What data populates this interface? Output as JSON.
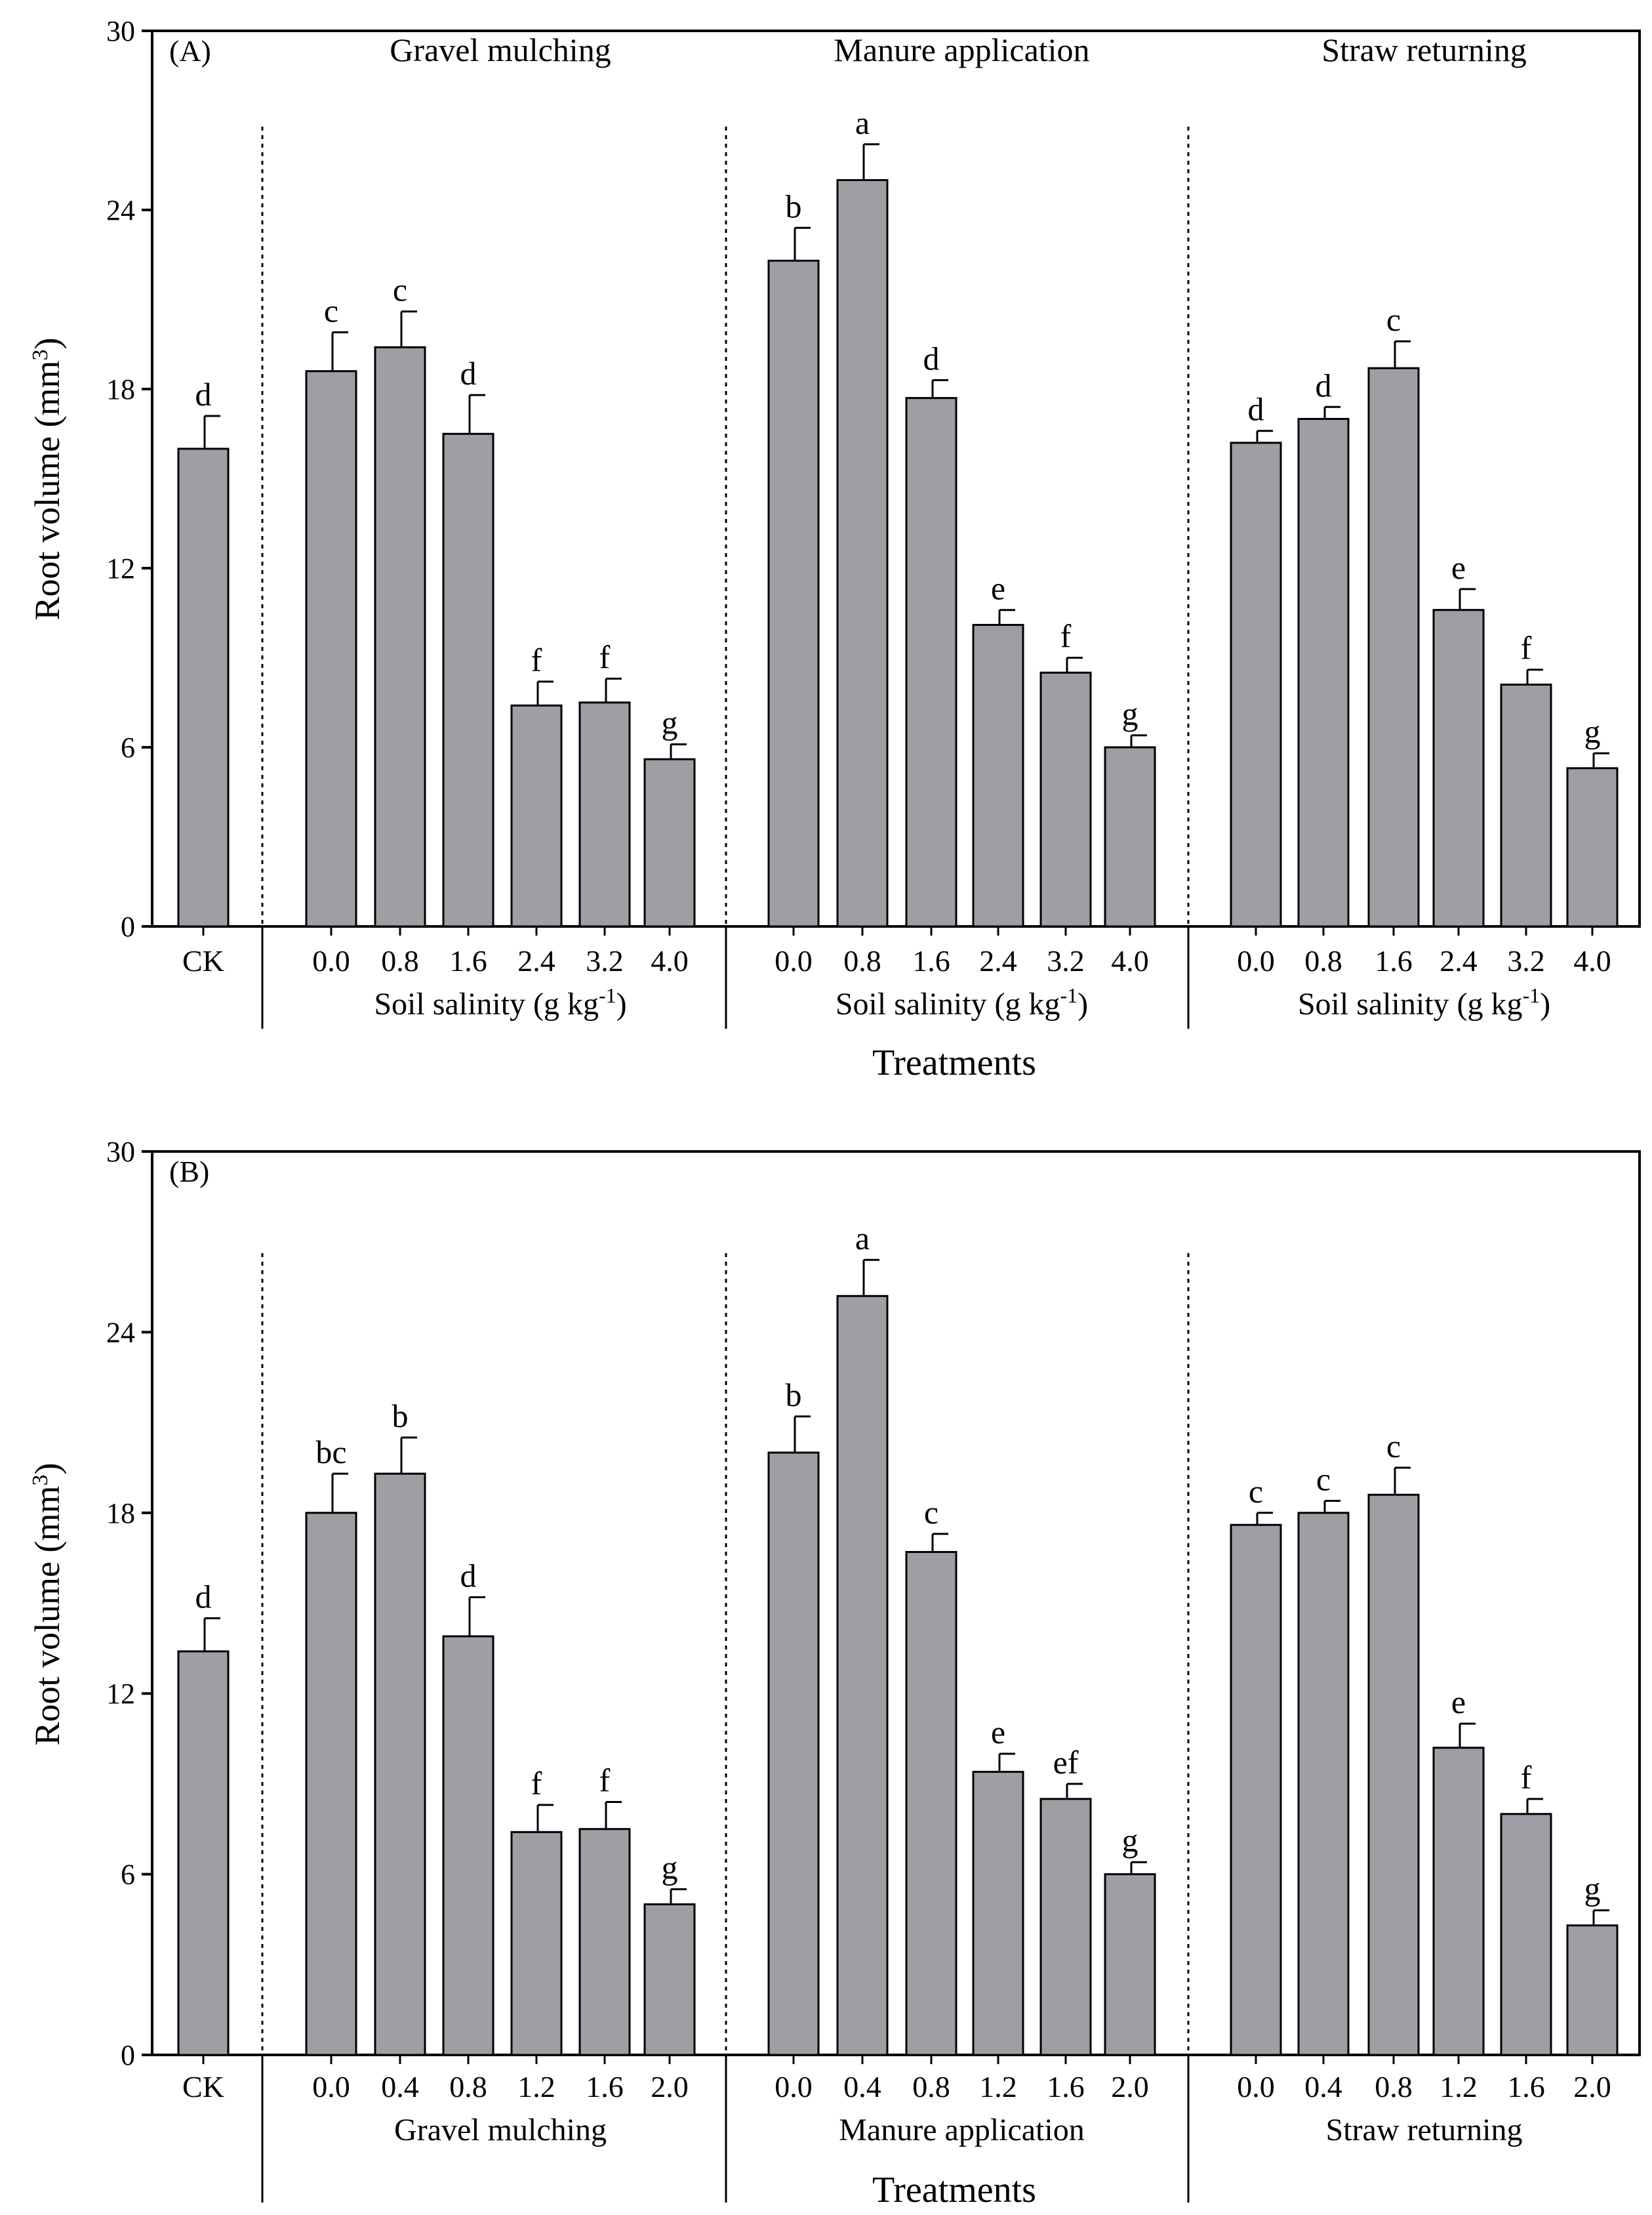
{
  "chart_data": [
    {
      "type": "bar",
      "panel_label": "(A)",
      "ylabel": "Root volume (mm",
      "ylabel_sup": "3",
      "ylabel_end": ")",
      "ylim": [
        0,
        30
      ],
      "yticks": [
        "0",
        "6",
        "12",
        "18",
        "24",
        "30"
      ],
      "ytick_values": [
        0,
        6,
        12,
        18,
        24,
        30
      ],
      "xlabel": "Treatments",
      "bar_color": "#9e9fa4",
      "groups": [
        {
          "name": "CK",
          "title": "",
          "sublabel": "",
          "sublabel_sup": "",
          "sublabel_end": "",
          "categories": [
            "CK"
          ],
          "values": [
            16.0
          ],
          "errors": [
            1.1
          ],
          "letters": [
            "d"
          ]
        },
        {
          "name": "Gravel mulching",
          "title": "Gravel mulching",
          "sublabel": "Soil salinity (g kg",
          "sublabel_sup": "-1",
          "sublabel_end": ")",
          "categories": [
            "0.0",
            "0.8",
            "1.6",
            "2.4",
            "3.2",
            "4.0"
          ],
          "values": [
            18.6,
            19.4,
            16.5,
            7.4,
            7.5,
            5.6
          ],
          "errors": [
            1.3,
            1.2,
            1.3,
            0.8,
            0.8,
            0.5
          ],
          "letters": [
            "c",
            "c",
            "d",
            "f",
            "f",
            "g"
          ]
        },
        {
          "name": "Manure application",
          "title": "Manure application",
          "sublabel": "Soil salinity (g kg",
          "sublabel_sup": "-1",
          "sublabel_end": ")",
          "categories": [
            "0.0",
            "0.8",
            "1.6",
            "2.4",
            "3.2",
            "4.0"
          ],
          "values": [
            22.3,
            25.0,
            17.7,
            10.1,
            8.5,
            6.0
          ],
          "errors": [
            1.1,
            1.2,
            0.6,
            0.5,
            0.5,
            0.4
          ],
          "letters": [
            "b",
            "a",
            "d",
            "e",
            "f",
            "g"
          ]
        },
        {
          "name": "Straw returning",
          "title": "Straw returning",
          "sublabel": "Soil salinity (g kg",
          "sublabel_sup": "-1",
          "sublabel_end": ")",
          "categories": [
            "0.0",
            "0.8",
            "1.6",
            "2.4",
            "3.2",
            "4.0"
          ],
          "values": [
            16.2,
            17.0,
            18.7,
            10.6,
            8.1,
            5.3
          ],
          "errors": [
            0.4,
            0.4,
            0.9,
            0.7,
            0.5,
            0.5
          ],
          "letters": [
            "d",
            "d",
            "c",
            "e",
            "f",
            "g"
          ]
        }
      ]
    },
    {
      "type": "bar",
      "panel_label": "(B)",
      "ylabel": "Root volume (mm",
      "ylabel_sup": "3",
      "ylabel_end": ")",
      "ylim": [
        0,
        30
      ],
      "yticks": [
        "0",
        "6",
        "12",
        "18",
        "24",
        "30"
      ],
      "ytick_values": [
        0,
        6,
        12,
        18,
        24,
        30
      ],
      "xlabel": "Treatments",
      "bar_color": "#9e9fa4",
      "groups": [
        {
          "name": "CK",
          "title": "",
          "sublabel": "",
          "sublabel_sup": "",
          "sublabel_end": "",
          "categories": [
            "CK"
          ],
          "values": [
            13.4
          ],
          "errors": [
            1.1
          ],
          "letters": [
            "d"
          ]
        },
        {
          "name": "Gravel mulching",
          "title": "",
          "sublabel": "Gravel mulching",
          "sublabel_sup": "",
          "sublabel_end": "",
          "categories": [
            "0.0",
            "0.4",
            "0.8",
            "1.2",
            "1.6",
            "2.0"
          ],
          "values": [
            18.0,
            19.3,
            13.9,
            7.4,
            7.5,
            5.0
          ],
          "errors": [
            1.3,
            1.2,
            1.3,
            0.9,
            0.9,
            0.5
          ],
          "letters": [
            "bc",
            "b",
            "d",
            "f",
            "f",
            "g"
          ]
        },
        {
          "name": "Manure application",
          "title": "",
          "sublabel": "Manure application",
          "sublabel_sup": "",
          "sublabel_end": "",
          "categories": [
            "0.0",
            "0.4",
            "0.8",
            "1.2",
            "1.6",
            "2.0"
          ],
          "values": [
            20.0,
            25.2,
            16.7,
            9.4,
            8.5,
            6.0
          ],
          "errors": [
            1.2,
            1.2,
            0.6,
            0.6,
            0.5,
            0.4
          ],
          "letters": [
            "b",
            "a",
            "c",
            "e",
            "ef",
            "g"
          ]
        },
        {
          "name": "Straw returning",
          "title": "",
          "sublabel": "Straw returning",
          "sublabel_sup": "",
          "sublabel_end": "",
          "categories": [
            "0.0",
            "0.4",
            "0.8",
            "1.2",
            "1.6",
            "2.0"
          ],
          "values": [
            17.6,
            18.0,
            18.6,
            10.2,
            8.0,
            4.3
          ],
          "errors": [
            0.4,
            0.4,
            0.9,
            0.8,
            0.5,
            0.5
          ],
          "letters": [
            "c",
            "c",
            "c",
            "e",
            "f",
            "g"
          ]
        }
      ]
    }
  ]
}
